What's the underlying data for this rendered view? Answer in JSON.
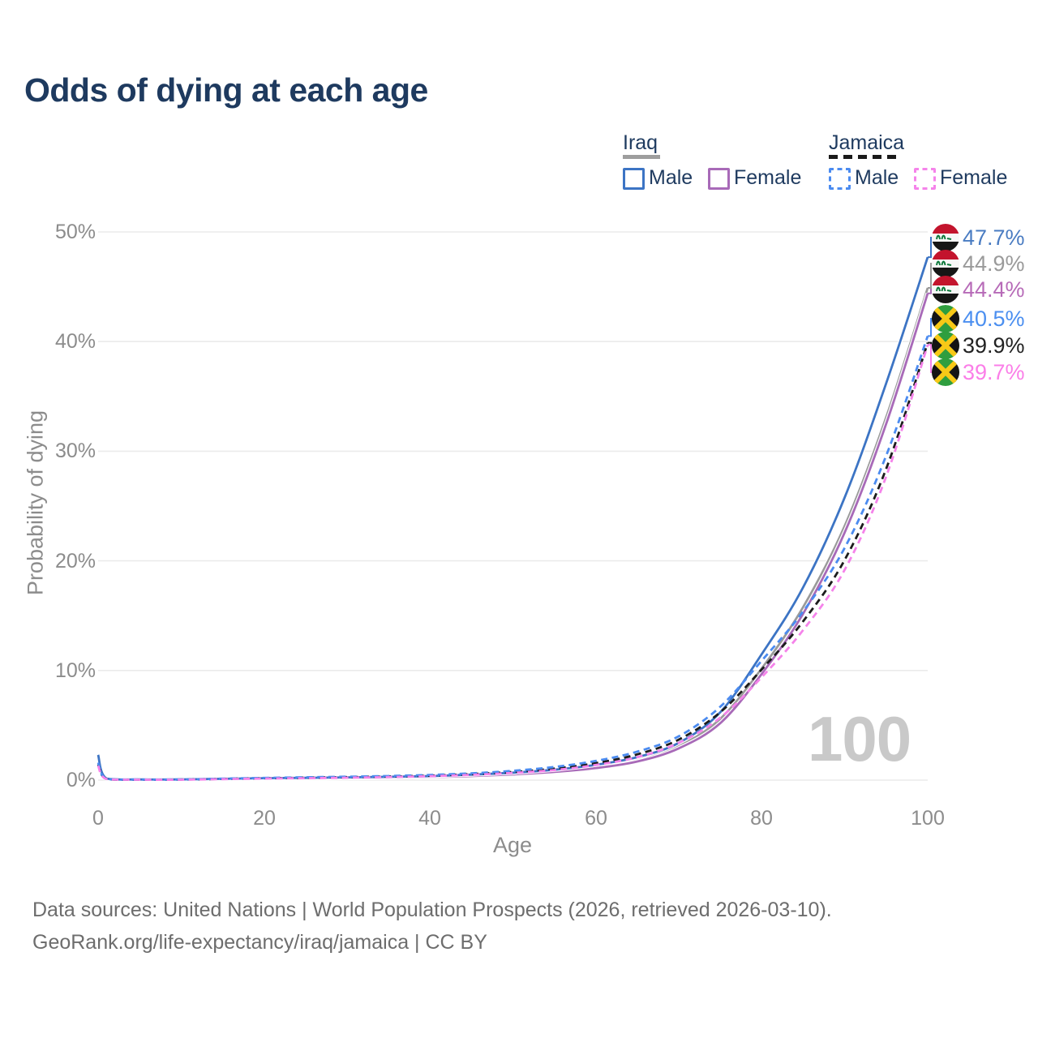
{
  "title": "Odds of dying at each age",
  "legend": {
    "groups": [
      {
        "label": "Iraq",
        "line_style": "solid",
        "line_color": "#9e9e9e",
        "items": [
          {
            "label": "Male",
            "color": "#3c74c4",
            "style": "solid"
          },
          {
            "label": "Female",
            "color": "#a86ab8",
            "style": "solid"
          }
        ]
      },
      {
        "label": "Jamaica",
        "line_style": "dashed",
        "line_color": "#1a1a1a",
        "items": [
          {
            "label": "Male",
            "color": "#4b8bf0",
            "style": "dashed"
          },
          {
            "label": "Female",
            "color": "#f583ea",
            "style": "dashed"
          }
        ]
      }
    ]
  },
  "chart_data": {
    "type": "line",
    "title": "Odds of dying at each age",
    "xlabel": "Age",
    "ylabel": "Probability of dying",
    "xlim": [
      0,
      100
    ],
    "ylim": [
      0,
      50
    ],
    "grid": "horizontal",
    "legend_position": "top-right",
    "x_tick_values": [
      0,
      20,
      40,
      60,
      80,
      100
    ],
    "x_tick_labels": [
      "0",
      "20",
      "40",
      "60",
      "80",
      "100"
    ],
    "y_tick_values": [
      0,
      10,
      20,
      30,
      40,
      50
    ],
    "y_tick_labels": [
      "0%",
      "10%",
      "20%",
      "30%",
      "40%",
      "50%"
    ],
    "age_marker": "100",
    "x": [
      0,
      1,
      5,
      10,
      15,
      20,
      25,
      30,
      35,
      40,
      45,
      50,
      55,
      60,
      65,
      70,
      75,
      80,
      85,
      90,
      95,
      100
    ],
    "series": [
      {
        "name": "Iraq Both sexes",
        "country": "Iraq",
        "sex": "Both sexes",
        "line_style": "solid",
        "color": "#9a9a9a",
        "values": [
          2.15,
          0.14,
          0.05,
          0.06,
          0.1,
          0.15,
          0.18,
          0.21,
          0.26,
          0.32,
          0.43,
          0.6,
          0.85,
          1.25,
          1.9,
          3.1,
          5.6,
          10.2,
          15.8,
          23.2,
          33.1,
          44.9
        ]
      },
      {
        "name": "Iraq Female",
        "country": "Iraq",
        "sex": "Female",
        "line_style": "solid",
        "color": "#a86ab8",
        "values": [
          2.0,
          0.13,
          0.05,
          0.05,
          0.08,
          0.11,
          0.14,
          0.17,
          0.21,
          0.27,
          0.37,
          0.52,
          0.75,
          1.1,
          1.7,
          2.9,
          5.2,
          9.7,
          15.2,
          22.6,
          32.5,
          44.4
        ]
      },
      {
        "name": "Iraq Male",
        "country": "Iraq",
        "sex": "Male",
        "line_style": "solid",
        "color": "#3c74c4",
        "values": [
          2.3,
          0.15,
          0.06,
          0.07,
          0.12,
          0.18,
          0.21,
          0.25,
          0.3,
          0.37,
          0.5,
          0.68,
          0.95,
          1.4,
          2.1,
          3.4,
          6.2,
          11.5,
          17.6,
          25.8,
          36.2,
          47.7
        ]
      },
      {
        "name": "Jamaica Both sexes",
        "country": "Jamaica",
        "sex": "Both sexes",
        "line_style": "dashed",
        "color": "#1c1c1c",
        "values": [
          1.45,
          0.11,
          0.04,
          0.05,
          0.11,
          0.17,
          0.22,
          0.27,
          0.33,
          0.41,
          0.55,
          0.75,
          1.05,
          1.55,
          2.35,
          3.7,
          6.2,
          10.1,
          14.5,
          20.1,
          28.4,
          39.9
        ]
      },
      {
        "name": "Jamaica Male",
        "country": "Jamaica",
        "sex": "Male",
        "line_style": "dashed",
        "color": "#4b8bf0",
        "values": [
          1.6,
          0.12,
          0.05,
          0.06,
          0.13,
          0.2,
          0.26,
          0.31,
          0.38,
          0.47,
          0.62,
          0.85,
          1.2,
          1.75,
          2.6,
          4.0,
          6.7,
          10.9,
          15.4,
          21.2,
          29.6,
          40.5
        ]
      },
      {
        "name": "Jamaica Female",
        "country": "Jamaica",
        "sex": "Female",
        "line_style": "dashed",
        "color": "#f583ea",
        "values": [
          1.3,
          0.1,
          0.04,
          0.04,
          0.09,
          0.14,
          0.18,
          0.22,
          0.28,
          0.36,
          0.48,
          0.66,
          0.92,
          1.38,
          2.1,
          3.4,
          5.7,
          9.4,
          13.7,
          19.2,
          27.7,
          39.7
        ]
      }
    ],
    "end_labels": [
      {
        "flag": "iraq",
        "series": "Iraq Male",
        "text": "47.7%",
        "value": 47.7,
        "color": "#3c74c4",
        "label_color": "#4a7cc2"
      },
      {
        "flag": "iraq",
        "series": "Iraq Both sexes",
        "text": "44.9%",
        "value": 44.9,
        "color": "#9a9a9a",
        "label_color": "#9a9a9a"
      },
      {
        "flag": "iraq",
        "series": "Iraq Female",
        "text": "44.4%",
        "value": 44.4,
        "color": "#a86ab8",
        "label_color": "#b76bb8"
      },
      {
        "flag": "jamaica",
        "series": "Jamaica Male",
        "text": "40.5%",
        "value": 40.5,
        "color": "#4b8bf0",
        "label_color": "#4b8ff0"
      },
      {
        "flag": "jamaica",
        "series": "Jamaica Both sexes",
        "text": "39.9%",
        "value": 39.9,
        "color": "#1c1c1c",
        "label_color": "#222222"
      },
      {
        "flag": "jamaica",
        "series": "Jamaica Female",
        "text": "39.7%",
        "value": 39.7,
        "color": "#f583ea",
        "label_color": "#fb7ee8"
      }
    ]
  },
  "footer": {
    "line1": "Data sources: United Nations | World Population Prospects (2026, retrieved 2026-03-10).",
    "line2": "GeoRank.org/life-expectancy/iraq/jamaica | CC BY"
  }
}
